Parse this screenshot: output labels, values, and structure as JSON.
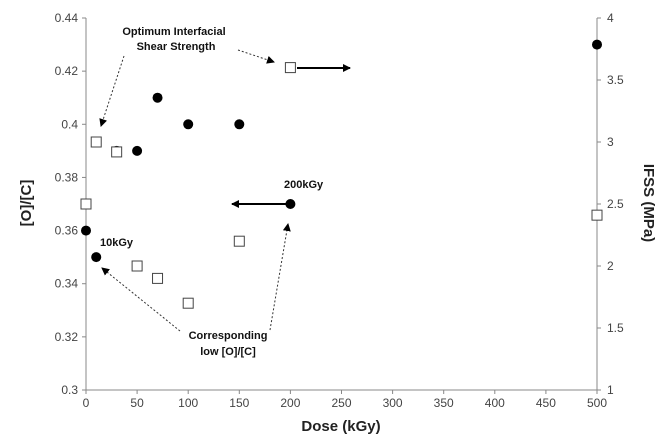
{
  "chart_data": {
    "type": "scatter",
    "xlabel": "Dose (kGy)",
    "ylabel": "[O]/[C]",
    "y2label": "IFSS (MPa)",
    "xlim": [
      0,
      500
    ],
    "ylim": [
      0.3,
      0.44
    ],
    "y2lim": [
      1,
      4
    ],
    "x_ticks": [
      "0",
      "50",
      "100",
      "150",
      "200",
      "250",
      "300",
      "350",
      "400",
      "450",
      "500"
    ],
    "y_ticks": [
      "0.3",
      "0.32",
      "0.34",
      "0.36",
      "0.38",
      "0.4",
      "0.42",
      "0.44"
    ],
    "y2_ticks": [
      "1",
      "1.5",
      "2",
      "2.5",
      "3",
      "3.5",
      "4"
    ],
    "grid": false,
    "series": [
      {
        "marker": "filled-circle",
        "axis": "left",
        "x": [
          0,
          10,
          30,
          50,
          70,
          100,
          150,
          200,
          500
        ],
        "y": [
          0.36,
          0.35,
          0.39,
          0.39,
          0.41,
          0.4,
          0.4,
          0.37,
          0.43
        ]
      },
      {
        "marker": "open-square",
        "axis": "right",
        "x": [
          0,
          10,
          30,
          50,
          70,
          100,
          150,
          200,
          500
        ],
        "y": [
          2.5,
          3.0,
          2.92,
          2.0,
          1.9,
          1.7,
          2.2,
          3.6,
          2.41
        ]
      }
    ],
    "annotations": {
      "optimum_line1": "Optimum Interfacial",
      "optimum_line2": "Shear Strength",
      "label_10kgy": "10kGy",
      "label_200kgy": "200kGy",
      "corresponding_line1": "Corresponding",
      "corresponding_line2": "low [O]/[C]"
    },
    "colors": {
      "marker": "#000000",
      "axis": "#888888",
      "text": "#222222"
    }
  }
}
